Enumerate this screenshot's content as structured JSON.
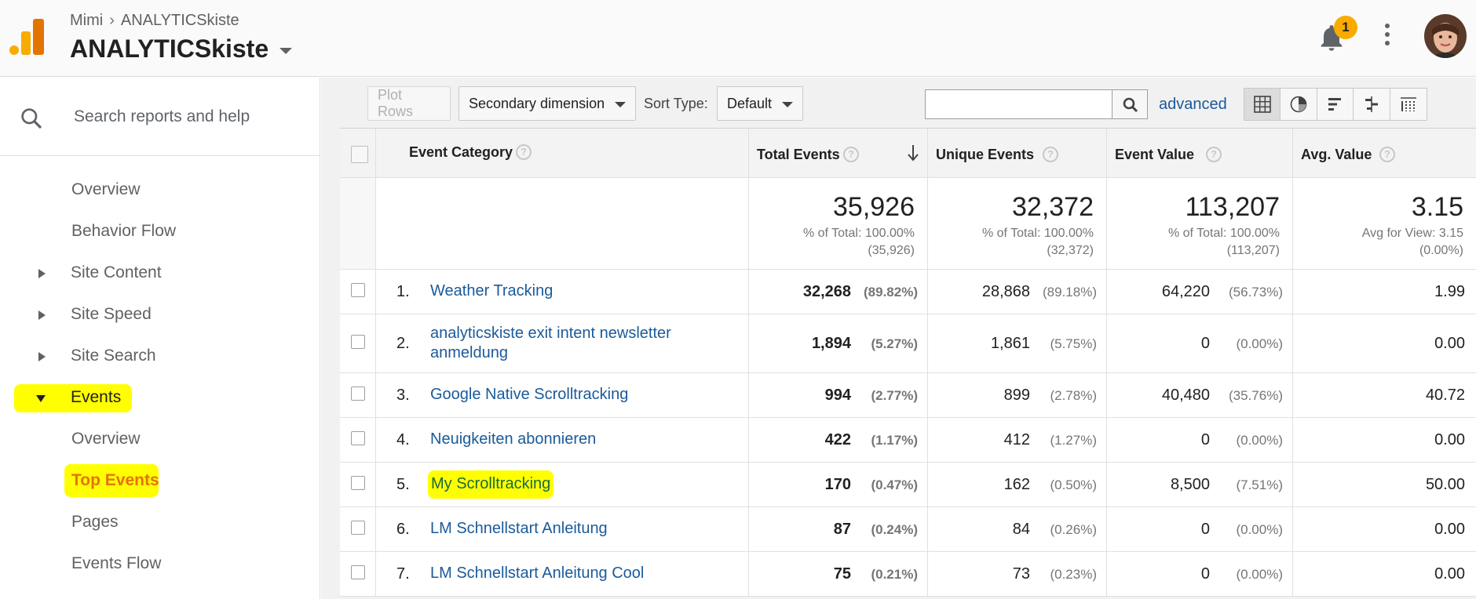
{
  "header": {
    "breadcrumb_account": "Mimi",
    "breadcrumb_property": "ANALYTICSkiste",
    "title": "ANALYTICSkiste",
    "notification_count": "1"
  },
  "sidebar": {
    "search_placeholder": "Search reports and help",
    "items": [
      {
        "label": "Overview"
      },
      {
        "label": "Behavior Flow"
      },
      {
        "label": "Site Content"
      },
      {
        "label": "Site Speed"
      },
      {
        "label": "Site Search"
      },
      {
        "label": "Events"
      },
      {
        "label": "Overview"
      },
      {
        "label": "Top Events"
      },
      {
        "label": "Pages"
      },
      {
        "label": "Events Flow"
      }
    ]
  },
  "toolbar": {
    "plot_rows": "Plot Rows",
    "secondary_dimension": "Secondary dimension",
    "sort_type_label": "Sort Type:",
    "sort_type_value": "Default",
    "search_value": "",
    "advanced": "advanced"
  },
  "table": {
    "columns": {
      "category": "Event Category",
      "total": "Total Events",
      "unique": "Unique Events",
      "value": "Event Value",
      "avg": "Avg. Value"
    },
    "totals": {
      "total": "35,926",
      "total_sub1": "% of Total: 100.00%",
      "total_sub2": "(35,926)",
      "unique": "32,372",
      "unique_sub1": "% of Total: 100.00%",
      "unique_sub2": "(32,372)",
      "value": "113,207",
      "value_sub1": "% of Total: 100.00%",
      "value_sub2": "(113,207)",
      "avg": "3.15",
      "avg_sub1": "Avg for View: 3.15",
      "avg_sub2": "(0.00%)"
    },
    "rows": [
      {
        "num": "1.",
        "category": "Weather Tracking",
        "total": "32,268",
        "total_pct": "(89.82%)",
        "unique": "28,868",
        "unique_pct": "(89.18%)",
        "value": "64,220",
        "value_pct": "(56.73%)",
        "avg": "1.99"
      },
      {
        "num": "2.",
        "category": "analyticskiste exit intent newsletter anmeldung",
        "total": "1,894",
        "total_pct": "(5.27%)",
        "unique": "1,861",
        "unique_pct": "(5.75%)",
        "value": "0",
        "value_pct": "(0.00%)",
        "avg": "0.00"
      },
      {
        "num": "3.",
        "category": "Google Native Scrolltracking",
        "total": "994",
        "total_pct": "(2.77%)",
        "unique": "899",
        "unique_pct": "(2.78%)",
        "value": "40,480",
        "value_pct": "(35.76%)",
        "avg": "40.72"
      },
      {
        "num": "4.",
        "category": "Neuigkeiten abonnieren",
        "total": "422",
        "total_pct": "(1.17%)",
        "unique": "412",
        "unique_pct": "(1.27%)",
        "value": "0",
        "value_pct": "(0.00%)",
        "avg": "0.00"
      },
      {
        "num": "5.",
        "category": "My Scrolltracking",
        "total": "170",
        "total_pct": "(0.47%)",
        "unique": "162",
        "unique_pct": "(0.50%)",
        "value": "8,500",
        "value_pct": "(7.51%)",
        "avg": "50.00"
      },
      {
        "num": "6.",
        "category": "LM Schnellstart Anleitung",
        "total": "87",
        "total_pct": "(0.24%)",
        "unique": "84",
        "unique_pct": "(0.26%)",
        "value": "0",
        "value_pct": "(0.00%)",
        "avg": "0.00"
      },
      {
        "num": "7.",
        "category": "LM Schnellstart Anleitung Cool",
        "total": "75",
        "total_pct": "(0.21%)",
        "unique": "73",
        "unique_pct": "(0.23%)",
        "value": "0",
        "value_pct": "(0.00%)",
        "avg": "0.00"
      }
    ]
  },
  "colors": {
    "link": "#1a5a9a",
    "highlight": "#ffff00",
    "active_nav": "#e8710a",
    "logo_orange": "#e37400",
    "logo_yellow": "#f9ab00"
  },
  "icons": [
    "analytics-logo-icon",
    "chevron-right-icon",
    "caret-down-icon",
    "bell-icon",
    "more-vert-icon",
    "avatar",
    "search-icon",
    "triangle-right-icon",
    "triangle-down-icon",
    "question-icon",
    "sort-arrow-icon",
    "table-view-icon",
    "pie-view-icon",
    "bar-view-icon",
    "comparison-view-icon",
    "pivot-view-icon"
  ]
}
